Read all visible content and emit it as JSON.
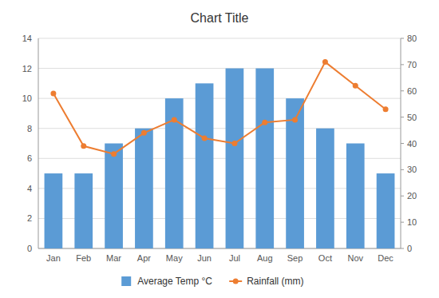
{
  "chart_data": {
    "type": "bar",
    "title": "Chart Title",
    "categories": [
      "Jan",
      "Feb",
      "Mar",
      "Apr",
      "May",
      "Jun",
      "Jul",
      "Aug",
      "Sep",
      "Oct",
      "Nov",
      "Dec"
    ],
    "series": [
      {
        "name": "Average Temp °C",
        "type": "bar",
        "color": "#5b9bd5",
        "values": [
          5,
          5,
          7,
          8,
          10,
          11,
          12,
          12,
          10,
          8,
          7,
          5
        ]
      },
      {
        "name": "Rainfall (mm)",
        "type": "line",
        "axis": "y2",
        "color": "#ed7d31",
        "marker": "circle",
        "values": [
          59,
          39,
          36,
          44,
          49,
          42,
          40,
          48,
          49,
          71,
          62,
          53
        ]
      }
    ],
    "ylim": [
      0,
      14
    ],
    "yticks": [
      0,
      2,
      4,
      6,
      8,
      10,
      12,
      14
    ],
    "y2lim": [
      0,
      80
    ],
    "y2ticks": [
      0,
      10,
      20,
      30,
      40,
      50,
      60,
      70,
      80
    ],
    "grid": true,
    "legend": "bottom"
  }
}
